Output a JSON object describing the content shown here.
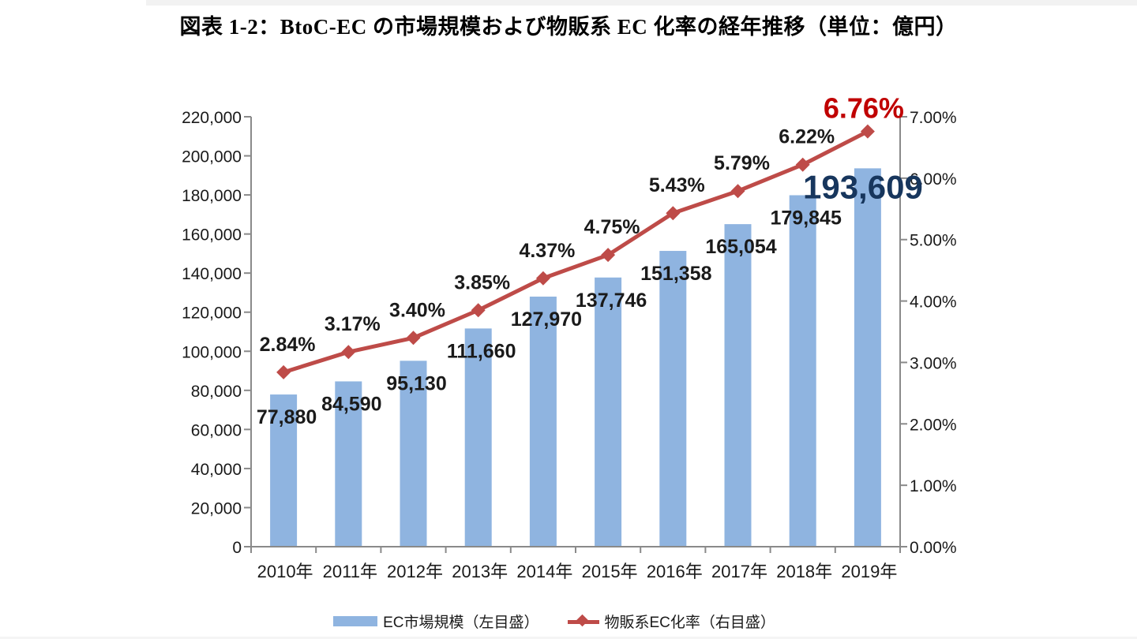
{
  "page": {
    "title": "図表 1-2：BtoC-EC の市場規模および物販系 EC 化率の経年推移（単位：億円）"
  },
  "chart_data": {
    "type": "combo",
    "title": "図表 1-2：BtoC-EC の市場規模および物販系 EC 化率の経年推移（単位：億円）",
    "categories": [
      "2010年",
      "2011年",
      "2012年",
      "2013年",
      "2014年",
      "2015年",
      "2016年",
      "2017年",
      "2018年",
      "2019年"
    ],
    "series": [
      {
        "name": "EC市場規模（左目盛）",
        "type": "bar",
        "axis": "left",
        "color": "#8FB4E0",
        "values": [
          77880,
          84590,
          95130,
          111660,
          127970,
          137746,
          151358,
          165054,
          179845,
          193609
        ],
        "labels": [
          "77,880",
          "84,590",
          "95,130",
          "111,660",
          "127,970",
          "137,746",
          "151,358",
          "165,054",
          "179,845",
          "193,609"
        ]
      },
      {
        "name": "物販系EC化率（右目盛）",
        "type": "line",
        "axis": "right",
        "color": "#BE4B48",
        "values": [
          2.84,
          3.17,
          3.4,
          3.85,
          4.37,
          4.75,
          5.43,
          5.79,
          6.22,
          6.76
        ],
        "labels": [
          "2.84%",
          "3.17%",
          "3.40%",
          "3.85%",
          "4.37%",
          "4.75%",
          "5.43%",
          "5.79%",
          "6.22%",
          "6.76%"
        ]
      }
    ],
    "left_axis": {
      "min": 0,
      "max": 220000,
      "step": 20000,
      "tick_labels": [
        "0",
        "20,000",
        "40,000",
        "60,000",
        "80,000",
        "100,000",
        "120,000",
        "140,000",
        "160,000",
        "180,000",
        "200,000",
        "220,000"
      ]
    },
    "right_axis": {
      "min": 0,
      "max": 7,
      "step": 1,
      "tick_labels": [
        "0.00%",
        "1.00%",
        "2.00%",
        "3.00%",
        "4.00%",
        "5.00%",
        "6.00%",
        "7.00%"
      ]
    },
    "grid": "off",
    "legend_position": "bottom",
    "emphasis": {
      "last_bar_label_color": "#17365D",
      "last_line_label_color": "#C00000"
    },
    "label_color": "#1a1a1a",
    "axis_color": "#8a8a8a"
  },
  "legend": {
    "items": [
      {
        "label": "EC市場規模（左目盛）",
        "swatch": "bar-swatch",
        "color": "#8FB4E0"
      },
      {
        "label": "物販系EC化率（右目盛）",
        "swatch": "line-diamond-swatch",
        "color": "#BE4B48"
      }
    ]
  }
}
